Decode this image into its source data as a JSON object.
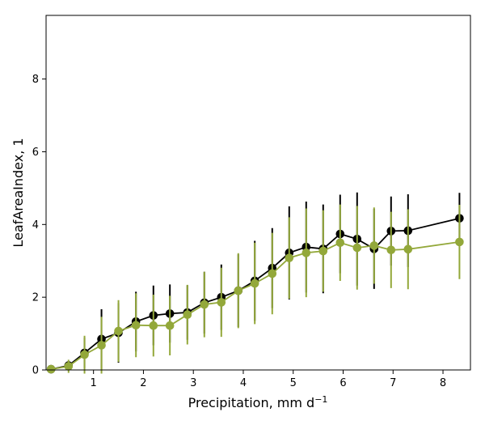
{
  "chart_data": {
    "type": "line",
    "xlabel": "Precipitation,  mm d",
    "xlabel_sup": "−1",
    "ylabel": "LeafAreaIndex,  1",
    "xlim": [
      0.05,
      8.55
    ],
    "ylim": [
      0,
      9.75
    ],
    "xticks": [
      1,
      2,
      3,
      4,
      5,
      6,
      7,
      8
    ],
    "yticks": [
      0,
      2,
      4,
      6,
      8
    ],
    "grid": false,
    "legend": "none",
    "x": [
      0.15,
      0.5,
      0.82,
      1.16,
      1.5,
      1.85,
      2.2,
      2.53,
      2.88,
      3.22,
      3.56,
      3.9,
      4.23,
      4.58,
      4.92,
      5.26,
      5.6,
      5.94,
      6.28,
      6.62,
      6.96,
      7.3,
      8.33
    ],
    "series": [
      {
        "color": "#000000",
        "y": [
          0.02,
          0.12,
          0.47,
          0.85,
          1.02,
          1.33,
          1.5,
          1.55,
          1.58,
          1.85,
          2.0,
          2.18,
          2.45,
          2.8,
          3.22,
          3.38,
          3.33,
          3.74,
          3.6,
          3.33,
          3.82,
          3.83,
          4.17
        ],
        "err": [
          0.02,
          0.1,
          0.42,
          0.82,
          0.82,
          0.82,
          0.82,
          0.8,
          0.75,
          0.85,
          0.9,
          1.0,
          1.1,
          1.1,
          1.28,
          1.25,
          1.22,
          1.08,
          1.28,
          1.1,
          0.95,
          1.0,
          0.7
        ]
      },
      {
        "color": "#93a83a",
        "y": [
          0.02,
          0.1,
          0.42,
          0.68,
          1.07,
          1.23,
          1.22,
          1.22,
          1.52,
          1.8,
          1.86,
          2.18,
          2.38,
          2.65,
          3.08,
          3.22,
          3.27,
          3.5,
          3.36,
          3.42,
          3.3,
          3.32,
          3.52
        ],
        "err": [
          0.02,
          0.18,
          0.52,
          0.78,
          0.85,
          0.88,
          0.85,
          0.82,
          0.82,
          0.9,
          0.95,
          1.03,
          1.12,
          1.12,
          1.12,
          1.22,
          1.12,
          1.05,
          1.15,
          1.05,
          1.05,
          1.1,
          1.02
        ]
      }
    ]
  }
}
